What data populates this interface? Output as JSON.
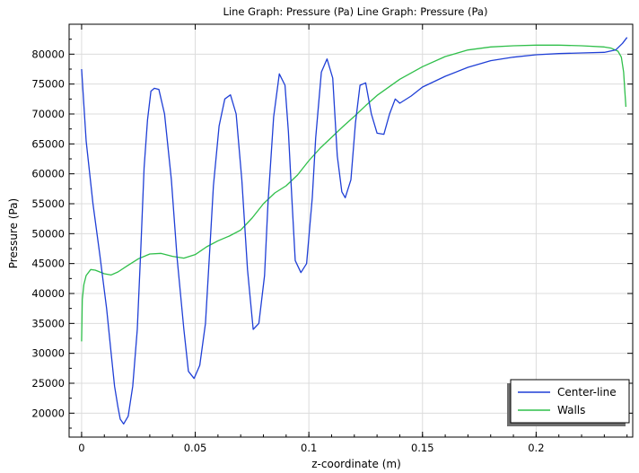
{
  "chart_data": {
    "type": "line",
    "title": "Line Graph: Pressure (Pa)  Line Graph: Pressure (Pa)",
    "xlabel": "z-coordinate (m)",
    "ylabel": "Pressure (Pa)",
    "xlim": [
      -0.0055,
      0.2425
    ],
    "ylim": [
      16000,
      85000
    ],
    "xticks": [
      0,
      0.05,
      0.1,
      0.15,
      0.2
    ],
    "xtick_labels": [
      "0",
      "0.05",
      "0.1",
      "0.15",
      "0.2"
    ],
    "yticks": [
      20000,
      25000,
      30000,
      35000,
      40000,
      45000,
      50000,
      55000,
      60000,
      65000,
      70000,
      75000,
      80000
    ],
    "ytick_labels": [
      "20000",
      "25000",
      "30000",
      "35000",
      "40000",
      "45000",
      "50000",
      "55000",
      "60000",
      "65000",
      "70000",
      "75000",
      "80000"
    ],
    "grid": true,
    "legend_position": "bottom-right",
    "series": [
      {
        "name": "Center-line",
        "color": "#1f3fd6",
        "x": [
          0,
          0.002,
          0.005,
          0.008,
          0.011,
          0.013,
          0.0145,
          0.016,
          0.017,
          0.0185,
          0.0205,
          0.0225,
          0.0245,
          0.026,
          0.0275,
          0.029,
          0.0305,
          0.032,
          0.034,
          0.0365,
          0.0395,
          0.042,
          0.045,
          0.047,
          0.0495,
          0.052,
          0.0545,
          0.0565,
          0.058,
          0.0605,
          0.063,
          0.0655,
          0.068,
          0.0705,
          0.073,
          0.0755,
          0.078,
          0.0805,
          0.082,
          0.0845,
          0.087,
          0.0895,
          0.091,
          0.0925,
          0.094,
          0.0965,
          0.099,
          0.1015,
          0.103,
          0.1055,
          0.108,
          0.1105,
          0.1125,
          0.1145,
          0.116,
          0.1185,
          0.1205,
          0.1225,
          0.125,
          0.1275,
          0.13,
          0.133,
          0.1355,
          0.138,
          0.14,
          0.145,
          0.15,
          0.16,
          0.17,
          0.18,
          0.19,
          0.2,
          0.21,
          0.22,
          0.23,
          0.235,
          0.238,
          0.24
        ],
        "values": [
          77500,
          65500,
          55000,
          46500,
          37500,
          30000,
          24500,
          21000,
          19000,
          18200,
          19500,
          24500,
          34000,
          47000,
          61000,
          69000,
          73800,
          74300,
          74100,
          70000,
          59000,
          46000,
          34000,
          27000,
          25800,
          28000,
          35000,
          48000,
          58000,
          68000,
          72500,
          73200,
          70000,
          59000,
          44000,
          34000,
          35000,
          43000,
          55000,
          69500,
          76700,
          74800,
          67000,
          56000,
          45500,
          43500,
          45000,
          56000,
          66000,
          77000,
          79200,
          76000,
          63000,
          57000,
          56000,
          59000,
          68500,
          74800,
          75200,
          70000,
          66800,
          66600,
          70000,
          72500,
          71800,
          73000,
          74500,
          76300,
          77800,
          78900,
          79500,
          79900,
          80100,
          80200,
          80300,
          80700,
          81800,
          82800
        ]
      },
      {
        "name": "Walls",
        "color": "#2fbf4a",
        "x": [
          0,
          0.0003,
          0.001,
          0.002,
          0.004,
          0.006,
          0.008,
          0.01,
          0.013,
          0.016,
          0.02,
          0.025,
          0.03,
          0.035,
          0.04,
          0.045,
          0.05,
          0.055,
          0.06,
          0.065,
          0.07,
          0.075,
          0.08,
          0.085,
          0.09,
          0.095,
          0.1,
          0.105,
          0.11,
          0.115,
          0.12,
          0.125,
          0.13,
          0.14,
          0.15,
          0.16,
          0.17,
          0.18,
          0.19,
          0.2,
          0.21,
          0.22,
          0.23,
          0.233,
          0.236,
          0.2375,
          0.2385,
          0.239,
          0.2395
        ],
        "values": [
          32000,
          39000,
          41500,
          43000,
          44000,
          43900,
          43600,
          43300,
          43100,
          43600,
          44600,
          45800,
          46600,
          46700,
          46200,
          45900,
          46500,
          47800,
          48800,
          49600,
          50600,
          52600,
          55000,
          56800,
          58000,
          59800,
          62200,
          64300,
          66100,
          67900,
          69600,
          71400,
          73100,
          75800,
          77900,
          79600,
          80700,
          81200,
          81400,
          81500,
          81500,
          81400,
          81200,
          81000,
          80500,
          79500,
          77000,
          74000,
          71200
        ]
      }
    ]
  }
}
